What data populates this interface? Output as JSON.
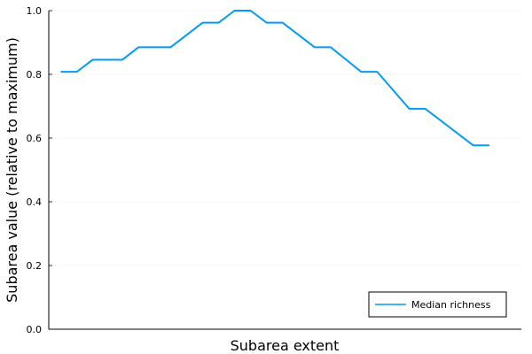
{
  "chart_data": {
    "type": "line",
    "title": "",
    "xlabel": "Subarea extent",
    "ylabel": "Subarea value (relative to maximum)",
    "ylim": [
      0,
      1
    ],
    "xlim": [
      0,
      29.5
    ],
    "grid": true,
    "legend_position": "bottom-right",
    "y_ticks": [
      0,
      0.2,
      0.4,
      0.6,
      0.8,
      1
    ],
    "y_tick_labels": [
      "0.0",
      "0.2",
      "0.4",
      "0.6",
      "0.8",
      "1.0"
    ],
    "x_ticks_shown": false,
    "series": [
      {
        "name": "Median richness",
        "color": "#009AFA",
        "x": [
          0.75,
          1.75,
          2.75,
          4.6,
          5.6,
          7.6,
          9.6,
          10.6,
          11.6,
          12.6,
          13.6,
          14.6,
          16.6,
          17.6,
          19.5,
          20.5,
          22.5,
          23.5,
          26.5,
          27.5
        ],
        "y": [
          0.808,
          0.808,
          0.846,
          0.846,
          0.885,
          0.885,
          0.962,
          0.962,
          1.0,
          1.0,
          0.962,
          0.962,
          0.885,
          0.885,
          0.808,
          0.808,
          0.692,
          0.692,
          0.577,
          0.577
        ]
      }
    ]
  }
}
